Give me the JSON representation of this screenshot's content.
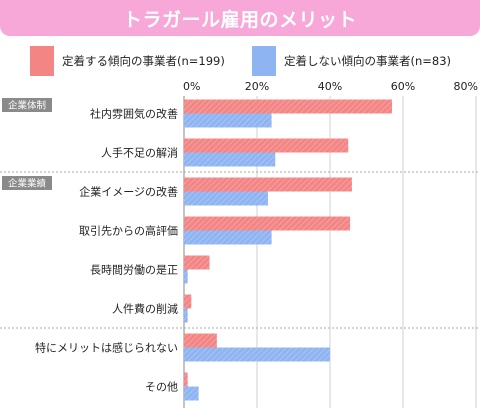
{
  "title": "トラガール雇用のメリット",
  "colors": {
    "title_bg": "#f7a8d8",
    "series_1": "#f48585",
    "series_2": "#8fb4f2",
    "group_tag": "#8a8a8a",
    "grid": "#d0d0d0",
    "divider": "#aaaaaa"
  },
  "groups": [
    {
      "label": "企業体制",
      "first_category": 0
    },
    {
      "label": "企業業績",
      "first_category": 2
    }
  ],
  "chart_data": {
    "type": "bar",
    "orientation": "horizontal",
    "categories": [
      "社内雰囲気の改善",
      "人手不足の解消",
      "企業イメージの改善",
      "取引先からの高評価",
      "長時間労働の是正",
      "人件費の削減",
      "特にメリットは感じられない",
      "その他"
    ],
    "series": [
      {
        "name": "定着する傾向の事業者(n=199)",
        "values": [
          57,
          45,
          46,
          45.5,
          7,
          2,
          9,
          1
        ]
      },
      {
        "name": "定着しない傾向の事業者(n=83)",
        "values": [
          24,
          25,
          23,
          24,
          1,
          1,
          40,
          4
        ]
      }
    ],
    "xlim": [
      0,
      80
    ],
    "x_ticks": [
      "0%",
      "20%",
      "40%",
      "60%",
      "80%"
    ],
    "grid": true,
    "legend": "top"
  }
}
